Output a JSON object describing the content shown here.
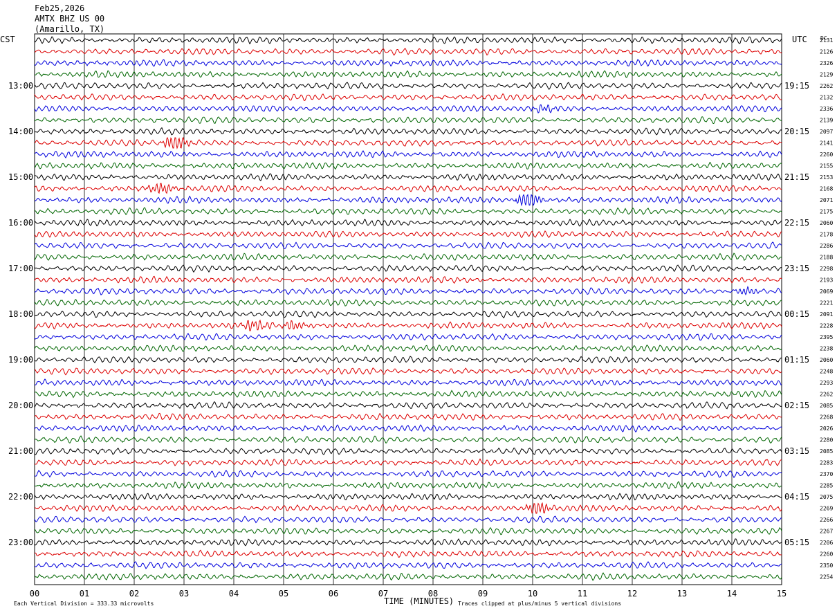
{
  "header": {
    "date": "Feb25,2026",
    "station": "AMTX BHZ US 00",
    "location": "(Amarillo, TX)"
  },
  "chart_data": {
    "type": "line",
    "title": "",
    "left_zone_label": "CST",
    "right_zone_label": "UTC",
    "dc_label": "DC",
    "xlabel": "TIME (MINUTES)",
    "x_ticks": [
      "00",
      "01",
      "02",
      "03",
      "04",
      "05",
      "06",
      "07",
      "08",
      "09",
      "10",
      "11",
      "12",
      "13",
      "14",
      "15"
    ],
    "xlim": [
      0,
      15
    ],
    "grid": true,
    "trace_colors": [
      "#000000",
      "#dd0000",
      "#0000dd",
      "#006600"
    ],
    "cst_labels": [
      "13:00",
      "14:00",
      "15:00",
      "16:00",
      "17:00",
      "18:00",
      "19:00",
      "20:00",
      "21:00",
      "22:00",
      "23:00"
    ],
    "utc_labels": [
      "19:15",
      "20:15",
      "21:15",
      "22:15",
      "23:15",
      "00:15",
      "01:15",
      "02:15",
      "03:15",
      "04:15",
      "05:15"
    ],
    "dc_offsets": [
      "2131",
      "2126",
      "2326",
      "2129",
      "2262",
      "2132",
      "2336",
      "2139",
      "2097",
      "2141",
      "2260",
      "2155",
      "2153",
      "2168",
      "2071",
      "2175",
      "2060",
      "2178",
      "2286",
      "2188",
      "2298",
      "2193",
      "2069",
      "2221",
      "2091",
      "2228",
      "2395",
      "2238",
      "2060",
      "2248",
      "2293",
      "2262",
      "2085",
      "2268",
      "2026",
      "2280",
      "2085",
      "2283",
      "2370",
      "2285",
      "2075",
      "2269",
      "2266",
      "2267",
      "2206",
      "2260",
      "2350",
      "2254"
    ],
    "events": [
      {
        "trace": 9,
        "minute": 2.7,
        "amplitude": 2.2
      },
      {
        "trace": 13,
        "minute": 2.4,
        "amplitude": 1.6
      },
      {
        "trace": 14,
        "minute": 9.8,
        "amplitude": 2.4
      },
      {
        "trace": 25,
        "minute": 4.3,
        "amplitude": 1.5
      },
      {
        "trace": 25,
        "minute": 5.1,
        "amplitude": 1.3
      },
      {
        "trace": 41,
        "minute": 10.0,
        "amplitude": 1.8
      },
      {
        "trace": 22,
        "minute": 14.2,
        "amplitude": 1.3
      },
      {
        "trace": 6,
        "minute": 10.1,
        "amplitude": 1.1
      }
    ],
    "footer_left": "Each Vertical Division =  333.33 microvolts",
    "footer_right": "Traces clipped at plus/minus 5 vertical divisions"
  }
}
